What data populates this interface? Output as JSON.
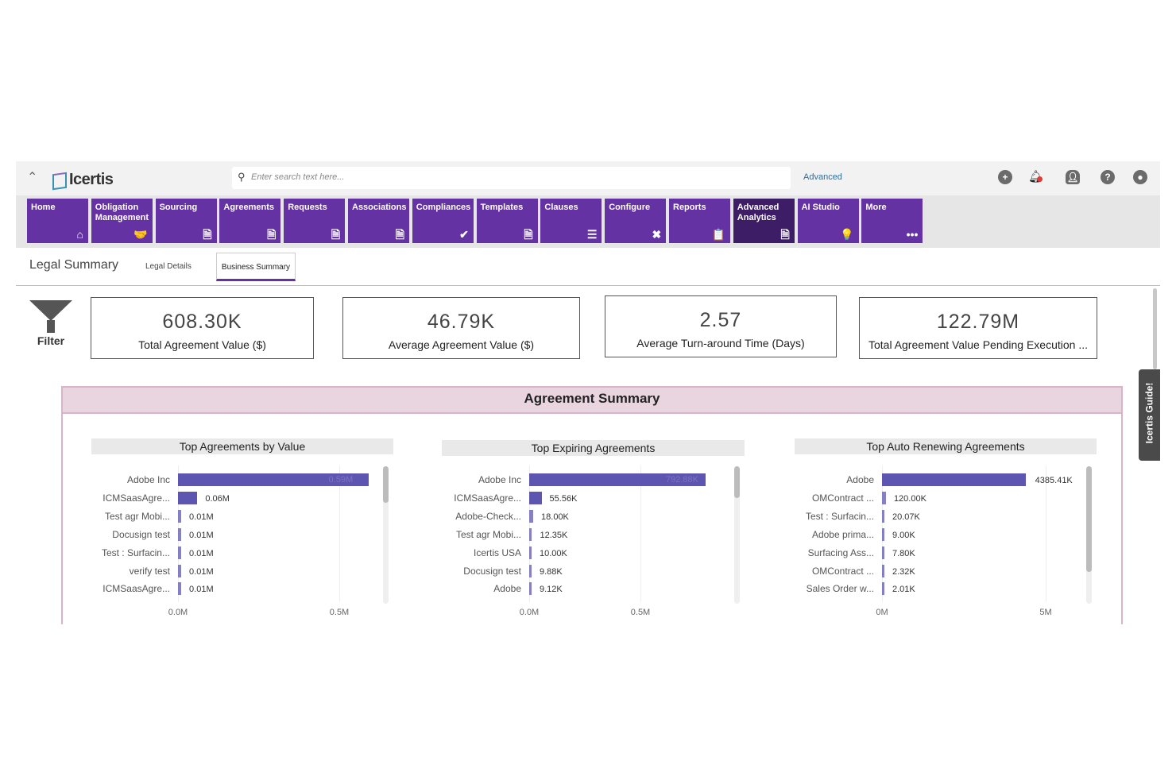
{
  "header": {
    "logo": "Icertis",
    "search_placeholder": "Enter search text here...",
    "advanced_label": "Advanced",
    "icons": [
      "plus-circle-icon",
      "bell-icon",
      "user-settings-icon",
      "help-icon",
      "user-icon"
    ]
  },
  "nav": [
    {
      "label": "Home",
      "icon": "home-icon",
      "glyph": "⌂"
    },
    {
      "label": "Obligation Management",
      "icon": "handshake-icon",
      "glyph": "🤝"
    },
    {
      "label": "Sourcing",
      "icon": "document-rx-icon",
      "glyph": "🗎"
    },
    {
      "label": "Agreements",
      "icon": "document-signature-icon",
      "glyph": "🗎"
    },
    {
      "label": "Requests",
      "icon": "document-plus-icon",
      "glyph": "🗎"
    },
    {
      "label": "Associations",
      "icon": "document-icon",
      "glyph": "🗎"
    },
    {
      "label": "Compliances",
      "icon": "double-check-icon",
      "glyph": "✔"
    },
    {
      "label": "Templates",
      "icon": "template-icon",
      "glyph": "🗎"
    },
    {
      "label": "Clauses",
      "icon": "list-icon",
      "glyph": "☰"
    },
    {
      "label": "Configure",
      "icon": "tools-icon",
      "glyph": "✖"
    },
    {
      "label": "Reports",
      "icon": "clipboard-icon",
      "glyph": "📋"
    },
    {
      "label": "Advanced Analytics",
      "icon": "analytics-document-icon",
      "glyph": "🗎",
      "active": true
    },
    {
      "label": "AI Studio",
      "icon": "lightbulb-icon",
      "glyph": "💡"
    },
    {
      "label": "More",
      "icon": "more-icon",
      "glyph": "•••"
    }
  ],
  "tabs": {
    "title": "Legal Summary",
    "items": [
      "Legal Details",
      "Business Summary"
    ],
    "active": "Business Summary"
  },
  "filter": {
    "label": "Filter"
  },
  "kpis": [
    {
      "value": "608.30K",
      "label": "Total Agreement Value ($)"
    },
    {
      "value": "46.79K",
      "label": "Average Agreement Value ($)"
    },
    {
      "value": "2.57",
      "label": "Average Turn-around Time (Days)"
    },
    {
      "value": "122.79M",
      "label": "Total Agreement Value Pending Execution ..."
    }
  ],
  "section_title": "Agreement Summary",
  "guide_label": "Icertis Guide!",
  "colors": {
    "nav": "#6532a3",
    "nav_active": "#3c1d66",
    "bar": "#5e55b0",
    "section_bg": "#e8d5e0"
  },
  "chart_data": [
    {
      "type": "bar",
      "orientation": "horizontal",
      "title": "Top Agreements by Value",
      "categories": [
        "Adobe Inc",
        "ICMSaasAgre...",
        "Test agr Mobi...",
        "Docusign test",
        "Test : Surfacin...",
        "verify test",
        "ICMSaasAgre..."
      ],
      "values": [
        0.59,
        0.06,
        0.01,
        0.01,
        0.01,
        0.01,
        0.01
      ],
      "data_labels": [
        "0.59M",
        "0.06M",
        "0.01M",
        "0.01M",
        "0.01M",
        "0.01M",
        "0.01M"
      ],
      "xticks": [
        "0.0M",
        "0.5M"
      ],
      "xtick_values": [
        0,
        0.5
      ],
      "unit": "M",
      "xlim": [
        0,
        0.6
      ]
    },
    {
      "type": "bar",
      "orientation": "horizontal",
      "title": "Top Expiring Agreements",
      "categories": [
        "Adobe Inc",
        "ICMSaasAgre...",
        "Adobe-Check...",
        "Test agr Mobi...",
        "Icertis USA",
        "Docusign test",
        "Adobe"
      ],
      "values": [
        0.79288,
        0.05556,
        0.018,
        0.01235,
        0.01,
        0.00988,
        0.00912
      ],
      "data_labels": [
        "792.88K",
        "55.56K",
        "18.00K",
        "12.35K",
        "10.00K",
        "9.88K",
        "9.12K"
      ],
      "xticks": [
        "0.0M",
        "0.5M"
      ],
      "xtick_values": [
        0,
        0.5
      ],
      "unit": "M",
      "xlim": [
        0,
        0.8
      ]
    },
    {
      "type": "bar",
      "orientation": "horizontal",
      "title": "Top Auto Renewing Agreements",
      "categories": [
        "Adobe",
        "OMContract ...",
        "Test : Surfacin...",
        "Adobe prima...",
        "Surfacing Ass...",
        "OMContract ...",
        "Sales Order w..."
      ],
      "values": [
        4.38541,
        0.12,
        0.02007,
        0.009,
        0.0078,
        0.00232,
        0.00201
      ],
      "data_labels": [
        "4385.41K",
        "120.00K",
        "20.07K",
        "9.00K",
        "7.80K",
        "2.32K",
        "2.01K"
      ],
      "xticks": [
        "0M",
        "5M"
      ],
      "xtick_values": [
        0,
        5
      ],
      "unit": "M",
      "xlim": [
        0,
        5.5
      ]
    }
  ]
}
